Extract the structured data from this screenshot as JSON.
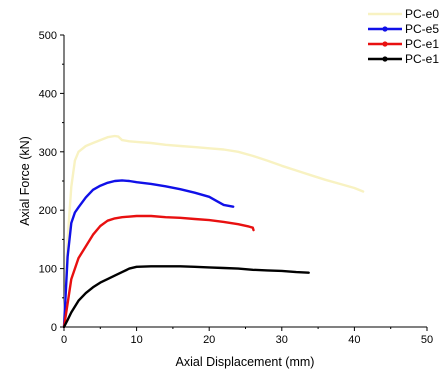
{
  "chart_data": {
    "type": "line",
    "title": "",
    "xlabel": "Axial Displacement (mm)",
    "ylabel": "Axial Force (kN)",
    "xlim": [
      0,
      50
    ],
    "ylim": [
      0,
      500
    ],
    "x_ticks": [
      "0",
      "10",
      "20",
      "30",
      "40",
      "50"
    ],
    "y_ticks": [
      "0",
      "100",
      "200",
      "300",
      "400",
      "500"
    ],
    "grid": false,
    "legend_position": "top-right",
    "series": [
      {
        "name": "PC-e0",
        "color": "#f8f2c2",
        "marker": "none",
        "x": [
          0,
          0.5,
          1.0,
          1.5,
          2,
          3,
          4,
          5,
          6,
          7,
          7.5,
          8,
          9,
          10,
          12,
          14,
          16,
          18,
          20,
          22,
          24,
          26,
          28,
          30,
          32,
          34,
          36,
          38,
          40,
          41.2
        ],
        "y": [
          0,
          150,
          240,
          285,
          300,
          310,
          315,
          320,
          325,
          327,
          326,
          320,
          318,
          317,
          315,
          312,
          310,
          308,
          306,
          304,
          300,
          293,
          285,
          276,
          268,
          260,
          252,
          245,
          238,
          232
        ]
      },
      {
        "name": "PC-e5",
        "color": "#1010e8",
        "marker": "dot",
        "x": [
          0,
          0.5,
          1.0,
          1.5,
          2,
          3,
          4,
          5,
          6,
          7,
          8,
          9,
          10,
          12,
          14,
          16,
          18,
          20,
          21,
          22,
          23.3
        ],
        "y": [
          0,
          120,
          178,
          196,
          205,
          222,
          235,
          242,
          247,
          250,
          251,
          250,
          248,
          245,
          241,
          236,
          230,
          223,
          216,
          209,
          206
        ]
      },
      {
        "name": "PC-e1",
        "color": "#e81010",
        "marker": "dot",
        "x": [
          0,
          0.5,
          1.0,
          1.5,
          2,
          3,
          4,
          5,
          6,
          7,
          8,
          10,
          12,
          14,
          16,
          18,
          20,
          22,
          24,
          25.5,
          26.0,
          26.1
        ],
        "y": [
          0,
          40,
          82,
          100,
          118,
          138,
          158,
          173,
          182,
          186,
          188,
          190,
          190,
          188,
          187,
          185,
          183,
          180,
          176,
          172,
          170,
          166
        ]
      },
      {
        "name": "PC-e1",
        "color": "#000000",
        "marker": "dot",
        "x": [
          0,
          0.5,
          1.0,
          2,
          3,
          4,
          5,
          6,
          7,
          8,
          9,
          10,
          12,
          14,
          16,
          18,
          20,
          22,
          24,
          26,
          28,
          30,
          32,
          33.7
        ],
        "y": [
          0,
          12,
          25,
          45,
          58,
          68,
          76,
          82,
          88,
          94,
          100,
          103,
          104,
          104,
          104,
          103,
          102,
          101,
          100,
          98,
          97,
          96,
          94,
          93
        ]
      }
    ]
  }
}
